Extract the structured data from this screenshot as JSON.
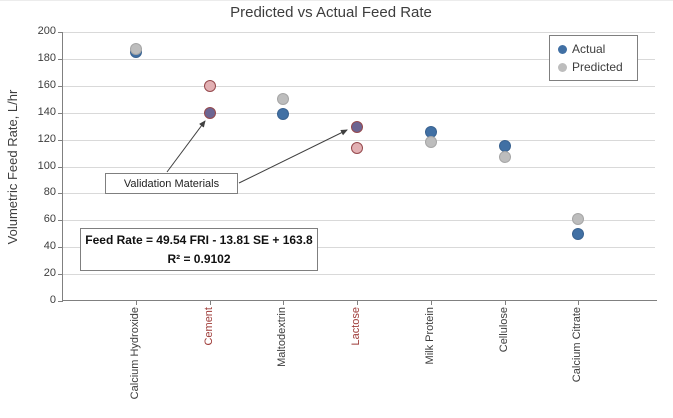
{
  "chart_data": {
    "type": "scatter",
    "title": "Predicted vs Actual Feed Rate",
    "ylabel": "Volumetric Feed Rate, L/hr",
    "ylim": [
      0,
      200
    ],
    "ytick_step": 20,
    "grid": true,
    "categories": [
      "Calcium Hydroxide",
      "Cement",
      "Maltodextrin",
      "Lactose",
      "Milk Protein",
      "Cellulose",
      "Calcium Citrate"
    ],
    "validation_categories": [
      "Cement",
      "Lactose"
    ],
    "series": [
      {
        "name": "Actual",
        "color": "#4170a4",
        "validation_fill": "#6c6592",
        "values": [
          185,
          140,
          139,
          129,
          126,
          115,
          50
        ]
      },
      {
        "name": "Predicted",
        "color": "#bdbdbd",
        "validation_fill": "#e2b0b3",
        "values": [
          187,
          160,
          150,
          114,
          118,
          107,
          61
        ]
      }
    ],
    "legend": {
      "position": "top-right",
      "entries": [
        "Actual",
        "Predicted"
      ]
    },
    "annotations": {
      "validation_label": "Validation Materials",
      "equation_line1": "Feed Rate = 49.54 FRI - 13.81 SE + 163.8",
      "equation_line2": "R² = 0.9102"
    },
    "colors": {
      "validation_outline": "#96494d",
      "validation_category_label": "#9e3b38",
      "category_label": "#3d3d3d",
      "axis": "#808080",
      "gridline": "#d9d9d9"
    }
  }
}
